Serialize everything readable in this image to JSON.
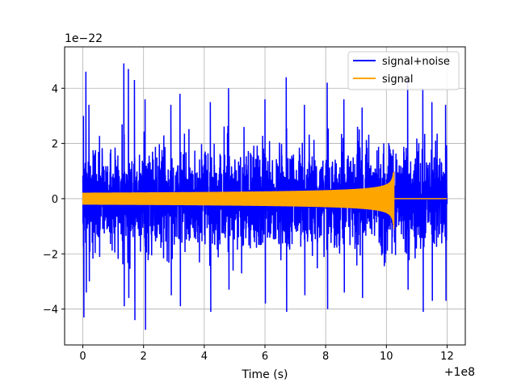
{
  "chart_data": {
    "type": "line",
    "title": "",
    "xlabel": "Time (s)",
    "ylabel": "",
    "x_offset_label": "+1e8",
    "y_scale_label": "1e−22",
    "xlim": [
      -0.6,
      12.6
    ],
    "ylim": [
      -5.3,
      5.5
    ],
    "x_ticks": [
      0,
      2,
      4,
      6,
      8,
      10,
      12
    ],
    "x_tick_labels": [
      "0",
      "2",
      "4",
      "6",
      "8",
      "10",
      "12"
    ],
    "y_ticks": [
      -4,
      -2,
      0,
      2,
      4
    ],
    "y_tick_labels": [
      "−4",
      "−2",
      "0",
      "2",
      "4"
    ],
    "grid": true,
    "legend_position": "top-right",
    "series": [
      {
        "name": "signal+noise",
        "color": "#0000ff",
        "x_range": [
          0,
          12
        ],
        "noise_peaks": [
          [
            0.02,
            3.0,
            -4.3
          ],
          [
            0.1,
            4.6,
            -3.4
          ],
          [
            0.2,
            3.4,
            -3.0
          ],
          [
            1.35,
            4.9,
            -3.9
          ],
          [
            1.5,
            4.7,
            -3.6
          ],
          [
            1.7,
            4.3,
            -4.4
          ],
          [
            2.05,
            3.6,
            -4.75
          ],
          [
            2.9,
            3.4,
            -3.5
          ],
          [
            3.2,
            3.8,
            -3.9
          ],
          [
            4.2,
            3.5,
            -4.1
          ],
          [
            4.8,
            4.0,
            -3.3
          ],
          [
            6.0,
            3.6,
            -3.8
          ],
          [
            6.7,
            4.4,
            -4.1
          ],
          [
            7.3,
            3.4,
            -3.5
          ],
          [
            8.05,
            4.2,
            -4.0
          ],
          [
            8.6,
            3.6,
            -3.4
          ],
          [
            9.2,
            3.3,
            -3.6
          ],
          [
            10.7,
            4.3,
            -3.3
          ],
          [
            11.2,
            4.0,
            -4.1
          ],
          [
            11.5,
            3.5,
            -3.7
          ],
          [
            11.95,
            3.4,
            -3.7
          ]
        ]
      },
      {
        "name": "signal",
        "color": "#ffa500",
        "x_range": [
          0,
          12
        ],
        "chirp_end": 10.25,
        "amplitude_start": 0.2,
        "amplitude_peak": 1.1,
        "amplitude_after": 0
      }
    ]
  }
}
